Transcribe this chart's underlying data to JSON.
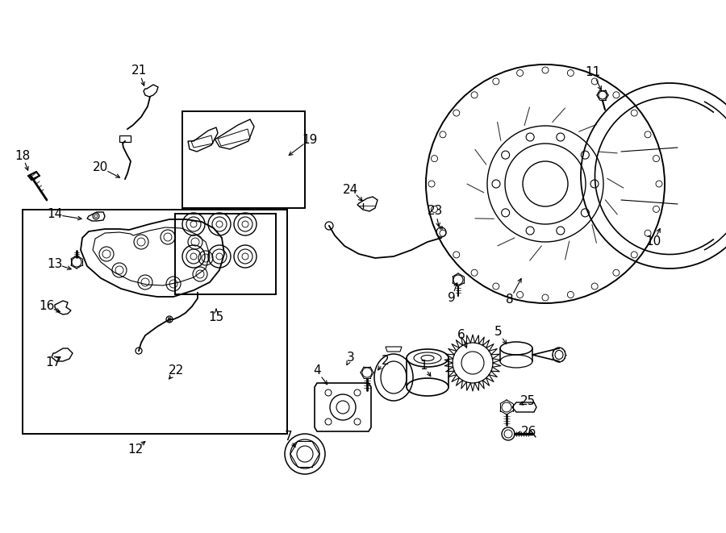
{
  "background_color": "#ffffff",
  "line_color": "#000000",
  "fig_width": 9.0,
  "fig_height": 6.61,
  "dpi": 100,
  "label_configs": [
    [
      "1",
      525,
      453,
      536,
      470,
      "right"
    ],
    [
      "2",
      478,
      447,
      466,
      462,
      "right"
    ],
    [
      "3",
      435,
      443,
      428,
      456,
      "right"
    ],
    [
      "4",
      393,
      460,
      408,
      480,
      "right"
    ],
    [
      "5",
      618,
      412,
      630,
      430,
      "right"
    ],
    [
      "6",
      572,
      415,
      580,
      435,
      "right"
    ],
    [
      "7",
      358,
      541,
      368,
      558,
      "right"
    ],
    [
      "8",
      632,
      372,
      648,
      342,
      "right"
    ],
    [
      "9",
      560,
      370,
      568,
      347,
      "right"
    ],
    [
      "10",
      810,
      300,
      820,
      280,
      "right"
    ],
    [
      "11",
      735,
      90,
      747,
      115,
      "right"
    ],
    [
      "12",
      168,
      557,
      183,
      545,
      "right"
    ],
    [
      "13",
      68,
      327,
      92,
      335,
      "right"
    ],
    [
      "14",
      68,
      266,
      105,
      272,
      "right"
    ],
    [
      "15",
      268,
      393,
      268,
      380,
      "right"
    ],
    [
      "16",
      58,
      380,
      78,
      388,
      "right"
    ],
    [
      "17",
      66,
      450,
      78,
      440,
      "right"
    ],
    [
      "18",
      28,
      193,
      36,
      215,
      "right"
    ],
    [
      "19",
      384,
      173,
      355,
      195,
      "right"
    ],
    [
      "20",
      125,
      208,
      152,
      222,
      "right"
    ],
    [
      "21",
      172,
      88,
      180,
      110,
      "right"
    ],
    [
      "22",
      218,
      460,
      207,
      473,
      "right"
    ],
    [
      "23",
      540,
      262,
      545,
      285,
      "right"
    ],
    [
      "24",
      435,
      235,
      452,
      252,
      "right"
    ],
    [
      "25",
      654,
      498,
      643,
      502,
      "right"
    ],
    [
      "26",
      656,
      536,
      637,
      538,
      "right"
    ]
  ]
}
